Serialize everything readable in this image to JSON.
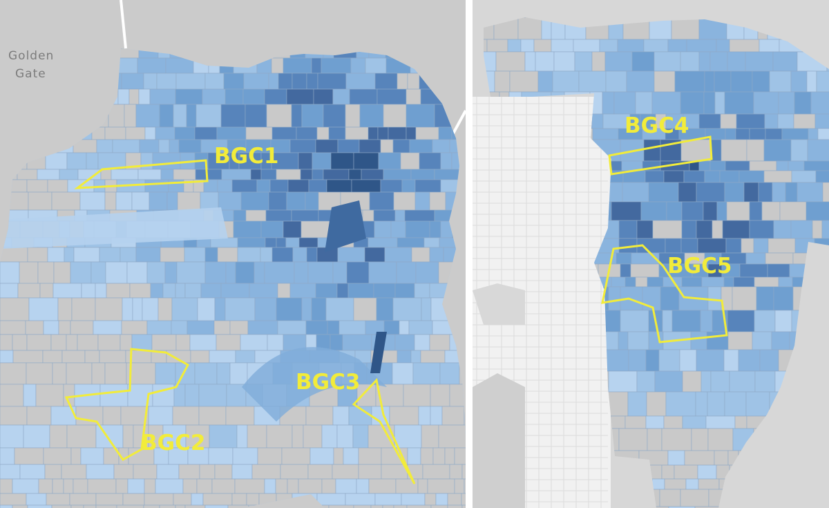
{
  "map_left": {
    "place_label_line1": "Golden",
    "place_label_line2": "Gate",
    "regions": [
      {
        "label": "BGC1"
      },
      {
        "label": "BGC2"
      },
      {
        "label": "BGC3"
      }
    ]
  },
  "map_right": {
    "regions": [
      {
        "label": "BGC4"
      },
      {
        "label": "BGC5"
      }
    ]
  },
  "colors": {
    "background_gray": "#cbcbcb",
    "water_land_gray": "#d3d3d3",
    "light_blue": "#9fc3e6",
    "mid_blue": "#6f9fd0",
    "dark_blue": "#355d91",
    "highlight_outline": "#f2ec3a",
    "divider": "#ffffff"
  }
}
